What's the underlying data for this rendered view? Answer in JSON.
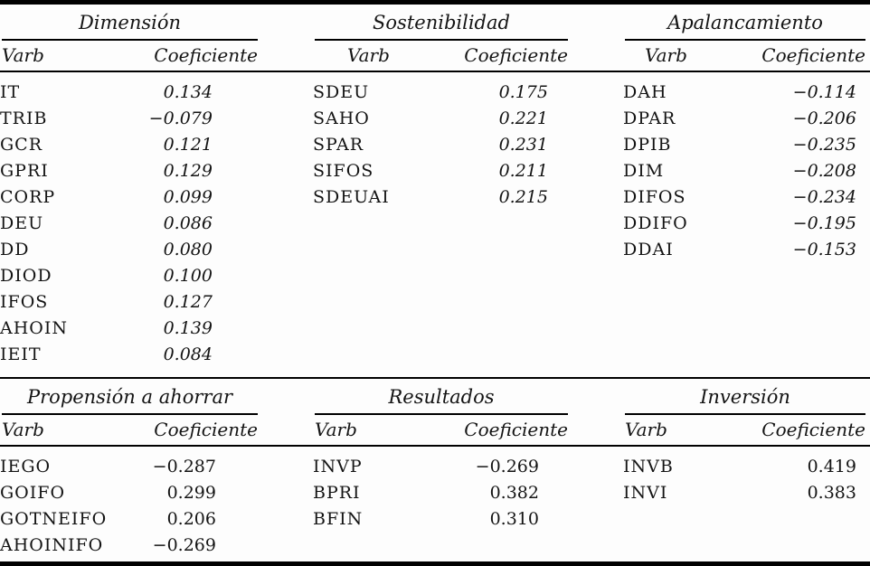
{
  "table": {
    "halves": [
      {
        "groups": [
          {
            "title": "Dimensión",
            "varb_label": "Varb",
            "coef_label": "Coeficiente",
            "rows": [
              {
                "varb": "IT",
                "coef": "0.134"
              },
              {
                "varb": "TRIB",
                "coef": "−0.079"
              },
              {
                "varb": "GCR",
                "coef": "0.121"
              },
              {
                "varb": "GPRI",
                "coef": "0.129"
              },
              {
                "varb": "CORP",
                "coef": "0.099"
              },
              {
                "varb": "DEU",
                "coef": "0.086"
              },
              {
                "varb": "DD",
                "coef": "0.080"
              },
              {
                "varb": "DIOD",
                "coef": "0.100"
              },
              {
                "varb": "IFOS",
                "coef": "0.127"
              },
              {
                "varb": "AHOIN",
                "coef": "0.139"
              },
              {
                "varb": "IEIT",
                "coef": "0.084"
              }
            ]
          },
          {
            "title": "Sostenibilidad",
            "varb_label": "Varb",
            "coef_label": "Coeficiente",
            "rows": [
              {
                "varb": "SDEU",
                "coef": "0.175"
              },
              {
                "varb": "SAHO",
                "coef": "0.221"
              },
              {
                "varb": "SPAR",
                "coef": "0.231"
              },
              {
                "varb": "SIFOS",
                "coef": "0.211"
              },
              {
                "varb": "SDEUAI",
                "coef": "0.215"
              }
            ]
          },
          {
            "title": "Apalancamiento",
            "varb_label": "Varb",
            "coef_label": "Coeficiente",
            "rows": [
              {
                "varb": "DAH",
                "coef": "−0.114"
              },
              {
                "varb": "DPAR",
                "coef": "−0.206"
              },
              {
                "varb": "DPIB",
                "coef": "−0.235"
              },
              {
                "varb": "DIM",
                "coef": "−0.208"
              },
              {
                "varb": "DIFOS",
                "coef": "−0.234"
              },
              {
                "varb": "DDIFO",
                "coef": "−0.195"
              },
              {
                "varb": "DDAI",
                "coef": "−0.153"
              }
            ]
          }
        ]
      },
      {
        "groups": [
          {
            "title": "Propensión a ahorrar",
            "varb_label": "Varb",
            "coef_label": "Coeficiente",
            "rows": [
              {
                "varb": "IEGO",
                "coef": "−0.287"
              },
              {
                "varb": "GOIFO",
                "coef": "0.299"
              },
              {
                "varb": "GOTNEIFO",
                "coef": "0.206"
              },
              {
                "varb": "AHOINIFO",
                "coef": "−0.269"
              }
            ]
          },
          {
            "title": "Resultados",
            "varb_label": "Varb",
            "coef_label": "Coeficiente",
            "rows": [
              {
                "varb": "INVP",
                "coef": "−0.269"
              },
              {
                "varb": "BPRI",
                "coef": "0.382"
              },
              {
                "varb": "BFIN",
                "coef": "0.310"
              }
            ]
          },
          {
            "title": "Inversión",
            "varb_label": "Varb",
            "coef_label": "Coeficiente",
            "rows": [
              {
                "varb": "INVB",
                "coef": "0.419"
              },
              {
                "varb": "INVI",
                "coef": "0.383"
              }
            ]
          }
        ]
      }
    ],
    "colors": {
      "text": "#141414",
      "rule": "#000000",
      "background": "#fdfdfd"
    }
  }
}
